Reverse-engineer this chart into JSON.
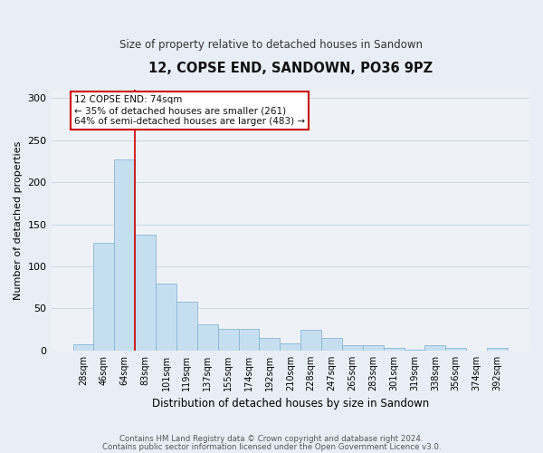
{
  "title": "12, COPSE END, SANDOWN, PO36 9PZ",
  "subtitle": "Size of property relative to detached houses in Sandown",
  "xlabel": "Distribution of detached houses by size in Sandown",
  "ylabel": "Number of detached properties",
  "bin_labels": [
    "28sqm",
    "46sqm",
    "64sqm",
    "83sqm",
    "101sqm",
    "119sqm",
    "137sqm",
    "155sqm",
    "174sqm",
    "192sqm",
    "210sqm",
    "228sqm",
    "247sqm",
    "265sqm",
    "283sqm",
    "301sqm",
    "319sqm",
    "338sqm",
    "356sqm",
    "374sqm",
    "392sqm"
  ],
  "bar_heights": [
    7,
    128,
    227,
    138,
    80,
    58,
    31,
    26,
    26,
    15,
    9,
    25,
    15,
    6,
    6,
    3,
    1,
    6,
    3,
    0,
    3
  ],
  "bar_color": "#c6dff0",
  "bar_edge_color": "#8ab4d4",
  "vline_color": "#cc0000",
  "annotation_title": "12 COPSE END: 74sqm",
  "annotation_line1": "← 35% of detached houses are smaller (261)",
  "annotation_line2": "64% of semi-detached houses are larger (483) →",
  "annotation_box_facecolor": "#ffffff",
  "annotation_box_edgecolor": "#cc0000",
  "ylim": [
    0,
    310
  ],
  "yticks": [
    0,
    50,
    100,
    150,
    200,
    250,
    300
  ],
  "footer_line1": "Contains HM Land Registry data © Crown copyright and database right 2024.",
  "footer_line2": "Contains public sector information licensed under the Open Government Licence v3.0.",
  "bg_color": "#e8eef5",
  "plot_bg_color": "#eef2f7",
  "grid_color": "#c8d4e4"
}
